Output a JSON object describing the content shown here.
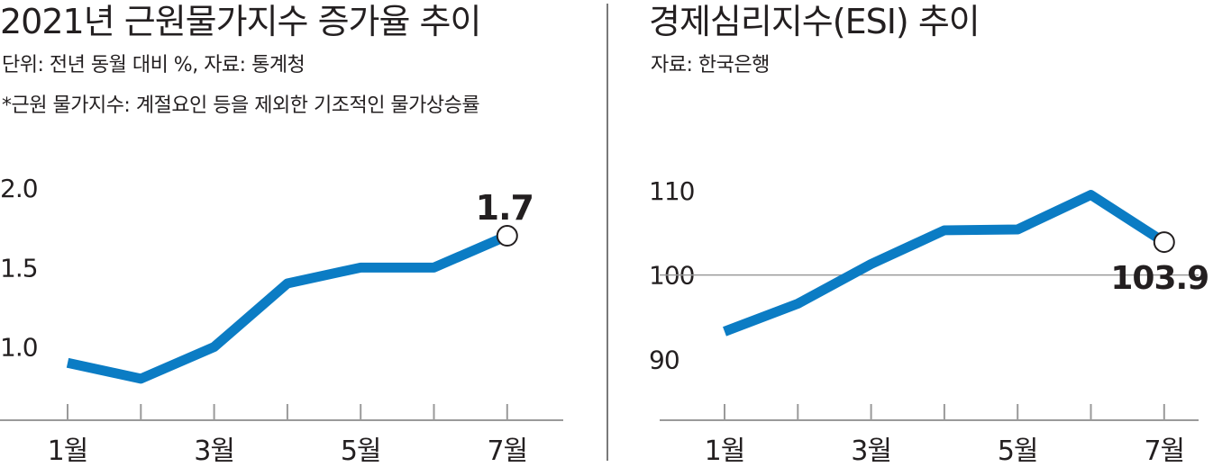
{
  "chart_data": [
    {
      "type": "line",
      "title": "2021년 근원물가지수 증가율 추이",
      "subtitles": [
        "단위: 전년 동월 대비 %, 자료: 통계청",
        "*근원 물가지수: 계절요인 등을 제외한 기조적인 물가상승률"
      ],
      "x": [
        1,
        2,
        3,
        4,
        5,
        6,
        7
      ],
      "x_tick_labels": [
        "1월",
        "",
        "3월",
        "",
        "5월",
        "",
        "7월"
      ],
      "y_ticks": [
        "2.0",
        "1.5",
        "1.0"
      ],
      "y_tick_values": [
        2.0,
        1.5,
        1.0
      ],
      "ylim": [
        0.55,
        2.25
      ],
      "series": [
        {
          "values": [
            0.9,
            0.8,
            1.0,
            1.4,
            1.5,
            1.5,
            1.7
          ]
        }
      ],
      "annotation": {
        "text": "1.7",
        "index": 6
      },
      "line_color": "#0b7cc4",
      "grid": false
    },
    {
      "type": "line",
      "title": "경제심리지수(ESI) 추이",
      "subtitles": [
        "자료: 한국은행"
      ],
      "x": [
        1,
        2,
        3,
        4,
        5,
        6,
        7
      ],
      "x_tick_labels": [
        "1월",
        "",
        "3월",
        "",
        "5월",
        "",
        "7월"
      ],
      "y_ticks": [
        "110",
        "100",
        "90"
      ],
      "y_tick_values": [
        110,
        100,
        90
      ],
      "ylim": [
        83,
        115
      ],
      "series": [
        {
          "values": [
            93.3,
            96.6,
            101.3,
            105.3,
            105.4,
            109.5,
            103.9
          ]
        }
      ],
      "annotation": {
        "text": "103.9",
        "index": 6
      },
      "reference_line": 100,
      "line_color": "#0b7cc4",
      "grid": false
    }
  ]
}
